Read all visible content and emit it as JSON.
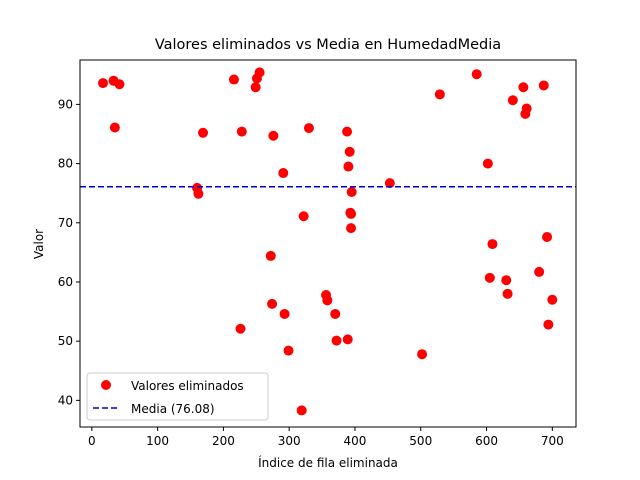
{
  "chart_data": {
    "type": "scatter",
    "title": "Valores eliminados vs Media en HumedadMedia",
    "xlabel": "Índice de fila eliminada",
    "ylabel": "Valor",
    "xlim": [
      -18,
      736
    ],
    "ylim": [
      35.5,
      97.5
    ],
    "xticks": [
      0,
      100,
      200,
      300,
      400,
      500,
      600,
      700
    ],
    "yticks": [
      40,
      50,
      60,
      70,
      80,
      90
    ],
    "grid": false,
    "legend_position": "lower-left",
    "series": [
      {
        "name": "Valores eliminados",
        "type": "scatter",
        "color": "#ff0000",
        "points": [
          [
            17,
            93.6
          ],
          [
            33,
            94.0
          ],
          [
            35,
            86.1
          ],
          [
            42,
            93.4
          ],
          [
            160,
            75.9
          ],
          [
            162,
            74.9
          ],
          [
            169,
            85.2
          ],
          [
            216,
            94.2
          ],
          [
            226,
            52.1
          ],
          [
            228,
            85.4
          ],
          [
            249,
            92.9
          ],
          [
            251,
            94.4
          ],
          [
            255,
            95.4
          ],
          [
            272,
            64.4
          ],
          [
            274,
            56.3
          ],
          [
            276,
            84.7
          ],
          [
            291,
            78.4
          ],
          [
            293,
            54.6
          ],
          [
            299,
            48.4
          ],
          [
            319,
            38.3
          ],
          [
            322,
            71.1
          ],
          [
            330,
            86.0
          ],
          [
            356,
            57.8
          ],
          [
            358,
            56.9
          ],
          [
            370,
            54.6
          ],
          [
            372,
            50.1
          ],
          [
            388,
            85.4
          ],
          [
            389,
            50.3
          ],
          [
            390,
            79.5
          ],
          [
            392,
            82.0
          ],
          [
            393,
            71.7
          ],
          [
            394,
            71.5
          ],
          [
            394,
            69.1
          ],
          [
            395,
            75.2
          ],
          [
            453,
            76.7
          ],
          [
            502,
            47.8
          ],
          [
            529,
            91.7
          ],
          [
            585,
            95.1
          ],
          [
            602,
            80.0
          ],
          [
            605,
            60.7
          ],
          [
            609,
            66.4
          ],
          [
            630,
            60.3
          ],
          [
            632,
            58.0
          ],
          [
            640,
            90.7
          ],
          [
            656,
            92.9
          ],
          [
            659,
            88.4
          ],
          [
            661,
            89.3
          ],
          [
            680,
            61.7
          ],
          [
            687,
            93.2
          ],
          [
            692,
            67.6
          ],
          [
            694,
            52.8
          ],
          [
            700,
            57.0
          ]
        ]
      },
      {
        "name": "Media (76.08)",
        "type": "hline",
        "value": 76.08,
        "color": "#0000cc",
        "linestyle": "dashed"
      }
    ]
  }
}
